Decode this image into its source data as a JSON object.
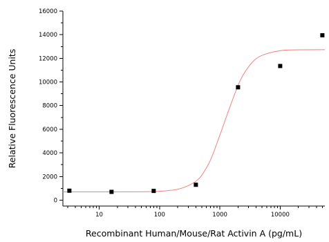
{
  "chart_data": {
    "type": "scatter",
    "title": "",
    "xlabel": "Recombinant Human/Mouse/Rat Activin A (pg/mL)",
    "ylabel": "Relative Fluorescence Units",
    "x_scale": "log",
    "xlim": [
      2.5,
      55000
    ],
    "ylim": [
      -500,
      16000
    ],
    "x_ticks": [
      10,
      100,
      1000,
      10000
    ],
    "x_tick_labels": [
      "10",
      "100",
      "1000",
      "10000"
    ],
    "y_ticks": [
      0,
      2000,
      4000,
      6000,
      8000,
      10000,
      12000,
      14000,
      16000
    ],
    "y_tick_labels": [
      "0",
      "2000",
      "4000",
      "6000",
      "8000",
      "10000",
      "12000",
      "14000",
      "16000"
    ],
    "grid": false,
    "legend": "none",
    "series": [
      {
        "kind": "points",
        "marker": "square",
        "color": "#000000",
        "x": [
          3.2,
          16,
          80,
          400,
          2000,
          10000,
          50000
        ],
        "y": [
          800,
          700,
          780,
          1300,
          9550,
          11350,
          13950
        ]
      },
      {
        "kind": "fit-curve",
        "color": "#f08080",
        "x": [
          2.5,
          10,
          50,
          100,
          200,
          300,
          400,
          500,
          700,
          1000,
          1400,
          2000,
          2500,
          3500,
          5000,
          10000,
          20000,
          55000
        ],
        "y": [
          700,
          700,
          710,
          750,
          920,
          1230,
          1600,
          2100,
          3400,
          5500,
          7600,
          9700,
          10700,
          11700,
          12250,
          12650,
          12720,
          12730
        ]
      }
    ]
  }
}
